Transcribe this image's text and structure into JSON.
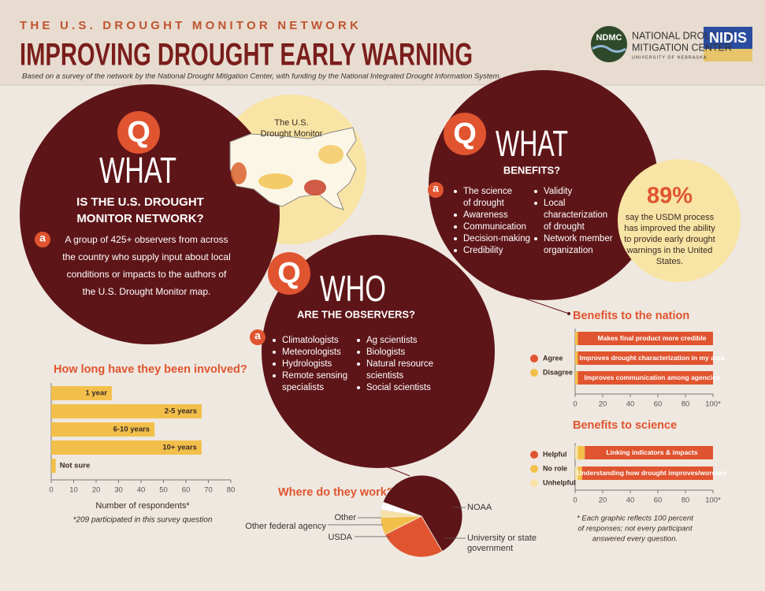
{
  "header": {
    "kicker": "THE U.S. DROUGHT MONITOR NETWORK",
    "title": "IMPROVING DROUGHT EARLY WARNING",
    "subtitle": "Based on a survey of the network by the National Drought Mitigation Center, with funding by the National Integrated Drought Information System.",
    "ndmc_badge": "NDMC",
    "ndmc_name": [
      "NATIONAL DROUGHT",
      "MITIGATION CENTER"
    ],
    "ndmc_university": "UNIVERSITY OF NEBRASKA",
    "nidis": "NIDIS"
  },
  "q_what_network": {
    "q": "Q",
    "word": "WHAT",
    "question": [
      "IS  THE U.S. DROUGHT",
      "MONITOR NETWORK?"
    ],
    "a": "a",
    "answer": [
      "A group of 425+ observers from across",
      "the country who supply input about local",
      "conditions or impacts to the authors of",
      "the  U.S. Drought Monitor map."
    ]
  },
  "map_label": [
    "The U.S.",
    "Drought Monitor"
  ],
  "q_what_benefits": {
    "q": "Q",
    "word": "WHAT",
    "question": "BENEFITS?",
    "a": "a",
    "list_left": [
      [
        "The science",
        "of drought"
      ],
      [
        "Awareness"
      ],
      [
        "Communication"
      ],
      [
        "Decision-making"
      ],
      [
        "Credibility"
      ]
    ],
    "list_right": [
      [
        "Validity"
      ],
      [
        "Local",
        "characterization",
        "of drought"
      ],
      [
        "Network member",
        "organization"
      ]
    ]
  },
  "stat": {
    "value": "89%",
    "text": [
      "say the USDM process",
      "has improved the ability",
      "to provide early drought",
      "warnings in the United",
      "States."
    ]
  },
  "q_who": {
    "q": "Q",
    "word": "WHO",
    "question": "ARE THE OBSERVERS?",
    "a": "a",
    "list_left": [
      [
        "Climatologists"
      ],
      [
        "Meteorologists"
      ],
      [
        "Hydrologists"
      ],
      [
        "Remote sensing",
        "specialists"
      ]
    ],
    "list_right": [
      [
        "Ag scientists"
      ],
      [
        "Biologists"
      ],
      [
        "Natural resource",
        "scientists"
      ],
      [
        "Social scientists"
      ]
    ]
  },
  "footnote": [
    "* Each graphic reflects 100 percent",
    "of responses; not every participant",
    "answered every question."
  ],
  "chart_data": [
    {
      "type": "bar",
      "orientation": "horizontal",
      "title": "How long have they been involved?",
      "categories": [
        "1 year",
        "2-5 years",
        "6-10 years",
        "10+ years",
        "Not sure"
      ],
      "values": [
        27,
        67,
        46,
        67,
        2
      ],
      "color": "#f2c04a",
      "xlim": [
        0,
        80
      ],
      "xticks": [
        0,
        10,
        20,
        30,
        40,
        50,
        60,
        70,
        80
      ],
      "xlabel": "Number of respondents*",
      "note": "*209 participated in this survey question"
    },
    {
      "type": "pie",
      "title": "Where do they work?",
      "categories": [
        "NOAA",
        "University or state government",
        "USDA",
        "Other federal agency",
        "Other"
      ],
      "values": [
        61,
        26,
        7,
        3,
        3
      ],
      "colors": [
        "#5e1518",
        "#e0542f",
        "#f2c04a",
        "#f7e0a6",
        "#ffffff"
      ]
    },
    {
      "type": "bar",
      "orientation": "horizontal",
      "stacked": true,
      "title": "Benefits to the nation",
      "categories": [
        "Makes final product more credible",
        "Improves drought characterization in my area",
        "Improves communication among agencies"
      ],
      "series": [
        {
          "name": "Agree",
          "color": "#e0542f",
          "values": [
            98,
            98,
            98
          ]
        },
        {
          "name": "Disagree",
          "color": "#f2c04a",
          "values": [
            2,
            2,
            2
          ]
        }
      ],
      "xlim": [
        0,
        100
      ],
      "xticks": [
        0,
        20,
        40,
        60,
        80,
        {
          "value": 100,
          "label": "100*"
        }
      ],
      "legend": "left"
    },
    {
      "type": "bar",
      "orientation": "horizontal",
      "stacked": true,
      "title": "Benefits to science",
      "categories": [
        "Linking indicators & impacts",
        "Understanding how drought improves/worsens"
      ],
      "series": [
        {
          "name": "Helpful",
          "color": "#e0542f",
          "values": [
            93,
            95
          ]
        },
        {
          "name": "No role",
          "color": "#f2c04a",
          "values": [
            5,
            3
          ]
        },
        {
          "name": "Unhelpful",
          "color": "#f9e3a8",
          "values": [
            2,
            2
          ]
        }
      ],
      "xlim": [
        0,
        100
      ],
      "xticks": [
        0,
        20,
        40,
        60,
        80,
        {
          "value": 100,
          "label": "100*"
        }
      ],
      "legend": "left"
    }
  ]
}
